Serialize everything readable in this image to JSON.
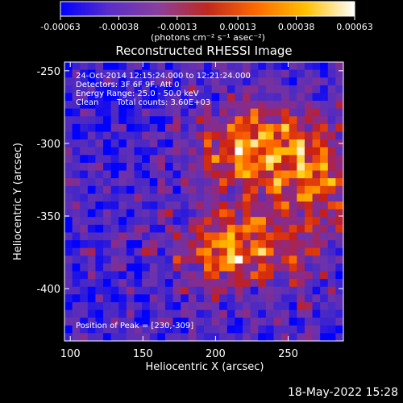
{
  "footer": {
    "timestamp": "18-May-2022 15:28"
  },
  "colorbar": {
    "tick_labels": [
      "-0.00063",
      "-0.00038",
      "-0.00013",
      "0.00013",
      "0.00038",
      "0.00063"
    ],
    "tick_values": [
      -0.00063,
      -0.00038,
      -0.00013,
      0.00013,
      0.00038,
      0.00063
    ],
    "range": [
      -0.00063,
      0.00063
    ],
    "units_label": "(photons cm⁻² s⁻¹ asec⁻²)",
    "colors": [
      "#0000ff",
      "#5a2ec8",
      "#8a3f9c",
      "#c0281e",
      "#ff6a00",
      "#ffc000",
      "#ffffff"
    ]
  },
  "chart_data": {
    "type": "heatmap",
    "title": "Reconstructed RHESSI Image",
    "xlabel": "Heliocentric X (arcsec)",
    "ylabel": "Heliocentric Y (arcsec)",
    "xlim": [
      96,
      288
    ],
    "ylim": [
      -436,
      -244
    ],
    "x_ticks": [
      100,
      150,
      200,
      250
    ],
    "y_ticks": [
      -250,
      -300,
      -350,
      -400
    ],
    "x_tick_labels": [
      "100",
      "150",
      "200",
      "250"
    ],
    "y_tick_labels": [
      "-250",
      "-300",
      "-350",
      "-400"
    ],
    "peak": [
      230,
      -309
    ],
    "annotations": {
      "time": "24-Oct-2014 12:15:24.000 to 12:21:24.000",
      "detectors": "Detectors: 3F 6F 9F, Att 0",
      "energy": "Energy Range: 25.0 - 50.0 keV",
      "method": "Clean",
      "counts": "Total counts: 3.60E+03",
      "peak_text": "Position of Peak = [230,-309]"
    }
  }
}
